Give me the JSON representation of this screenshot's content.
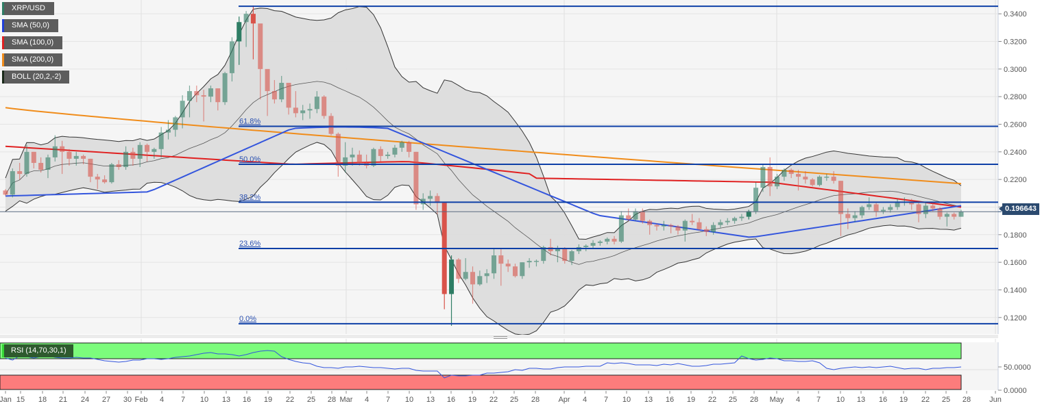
{
  "legend": [
    {
      "label": "XRP/USD",
      "color": "#2e7d64"
    },
    {
      "label": "SMA (50,0)",
      "color": "#1f3fd9"
    },
    {
      "label": "SMA (100,0)",
      "color": "#e02020"
    },
    {
      "label": "SMA (200,0)",
      "color": "#f08c1a"
    },
    {
      "label": "BOLL (20,2,-2)",
      "color": "#1a2a1a"
    }
  ],
  "rsi_label": "RSI (14,70,30,1)",
  "current_price": "0.196643",
  "colors": {
    "bull": "#2e7d64",
    "bear": "#d9534a",
    "sma50": "#3355dd",
    "sma100": "#e02020",
    "sma200": "#f08c1a",
    "fib": "#0d3fa6",
    "boll_fill": "#dcdcdc",
    "rsi_overbought": "#7cfc7c",
    "rsi_oversold": "#fc7c7c",
    "rsi_line": "#3355dd"
  },
  "chart_data": {
    "type": "candlestick",
    "title": "XRP/USD",
    "y_axis": {
      "min": 0.11,
      "max": 0.345,
      "ticks": [
        "0.3400",
        "0.3200",
        "0.3000",
        "0.2800",
        "0.2600",
        "0.2400",
        "0.2200",
        "0.2000",
        "0.1800",
        "0.1600",
        "0.1400",
        "0.1200"
      ]
    },
    "x_axis_labels": [
      "Jan",
      "15",
      "18",
      "21",
      "24",
      "27",
      "30",
      "Feb",
      "4",
      "7",
      "10",
      "13",
      "16",
      "19",
      "22",
      "25",
      "28",
      "Mar",
      "4",
      "7",
      "10",
      "13",
      "16",
      "19",
      "22",
      "25",
      "28",
      "Apr",
      "4",
      "7",
      "10",
      "13",
      "16",
      "19",
      "22",
      "25",
      "28",
      "May",
      "4",
      "7",
      "10",
      "13",
      "16",
      "19",
      "22",
      "25",
      "28",
      "Jun"
    ],
    "fibonacci": [
      {
        "label": "0.0%",
        "value": 0.1155
      },
      {
        "label": "23.6%",
        "value": 0.17
      },
      {
        "label": "38.2%",
        "value": 0.2035
      },
      {
        "label": "50.0%",
        "value": 0.231
      },
      {
        "label": "61.8%",
        "value": 0.2585
      },
      {
        "label": "",
        "value": 0.3455
      }
    ],
    "candles_approx": [
      [
        0.212,
        0.213,
        0.208,
        0.209
      ],
      [
        0.209,
        0.228,
        0.207,
        0.226
      ],
      [
        0.226,
        0.232,
        0.22,
        0.224
      ],
      [
        0.224,
        0.245,
        0.222,
        0.24
      ],
      [
        0.24,
        0.24,
        0.228,
        0.232
      ],
      [
        0.232,
        0.236,
        0.225,
        0.227
      ],
      [
        0.227,
        0.238,
        0.221,
        0.236
      ],
      [
        0.236,
        0.252,
        0.233,
        0.244
      ],
      [
        0.244,
        0.248,
        0.224,
        0.24
      ],
      [
        0.24,
        0.242,
        0.23,
        0.235
      ],
      [
        0.235,
        0.24,
        0.23,
        0.237
      ],
      [
        0.237,
        0.238,
        0.231,
        0.235
      ],
      [
        0.235,
        0.235,
        0.218,
        0.222
      ],
      [
        0.222,
        0.224,
        0.213,
        0.22
      ],
      [
        0.22,
        0.223,
        0.217,
        0.218
      ],
      [
        0.218,
        0.232,
        0.217,
        0.231
      ],
      [
        0.231,
        0.234,
        0.227,
        0.229
      ],
      [
        0.229,
        0.244,
        0.227,
        0.24
      ],
      [
        0.24,
        0.243,
        0.23,
        0.235
      ],
      [
        0.235,
        0.247,
        0.229,
        0.245
      ],
      [
        0.245,
        0.246,
        0.233,
        0.24
      ],
      [
        0.24,
        0.243,
        0.235,
        0.242
      ],
      [
        0.242,
        0.258,
        0.236,
        0.254
      ],
      [
        0.254,
        0.263,
        0.249,
        0.256
      ],
      [
        0.256,
        0.266,
        0.251,
        0.265
      ],
      [
        0.265,
        0.281,
        0.257,
        0.277
      ],
      [
        0.277,
        0.288,
        0.265,
        0.284
      ],
      [
        0.284,
        0.288,
        0.276,
        0.281
      ],
      [
        0.281,
        0.285,
        0.262,
        0.28
      ],
      [
        0.28,
        0.288,
        0.276,
        0.286
      ],
      [
        0.286,
        0.286,
        0.27,
        0.276
      ],
      [
        0.276,
        0.298,
        0.274,
        0.297
      ],
      [
        0.297,
        0.323,
        0.291,
        0.32
      ],
      [
        0.32,
        0.338,
        0.303,
        0.334
      ],
      [
        0.334,
        0.342,
        0.316,
        0.34
      ],
      [
        0.34,
        0.346,
        0.307,
        0.333
      ],
      [
        0.333,
        0.322,
        0.278,
        0.3
      ],
      [
        0.3,
        0.299,
        0.266,
        0.284
      ],
      [
        0.284,
        0.292,
        0.275,
        0.278
      ],
      [
        0.278,
        0.295,
        0.276,
        0.29
      ],
      [
        0.29,
        0.29,
        0.267,
        0.272
      ],
      [
        0.272,
        0.284,
        0.265,
        0.268
      ],
      [
        0.268,
        0.274,
        0.263,
        0.27
      ],
      [
        0.27,
        0.275,
        0.264,
        0.271
      ],
      [
        0.271,
        0.284,
        0.268,
        0.28
      ],
      [
        0.28,
        0.281,
        0.264,
        0.266
      ],
      [
        0.266,
        0.268,
        0.252,
        0.253
      ],
      [
        0.253,
        0.254,
        0.222,
        0.23
      ],
      [
        0.23,
        0.247,
        0.225,
        0.236
      ],
      [
        0.236,
        0.243,
        0.23,
        0.238
      ],
      [
        0.238,
        0.241,
        0.23,
        0.232
      ],
      [
        0.232,
        0.238,
        0.228,
        0.23
      ],
      [
        0.23,
        0.243,
        0.229,
        0.242
      ],
      [
        0.242,
        0.244,
        0.233,
        0.237
      ],
      [
        0.237,
        0.24,
        0.235,
        0.238
      ],
      [
        0.238,
        0.245,
        0.236,
        0.243
      ],
      [
        0.243,
        0.248,
        0.24,
        0.247
      ],
      [
        0.247,
        0.248,
        0.236,
        0.24
      ],
      [
        0.24,
        0.24,
        0.198,
        0.202
      ],
      [
        0.202,
        0.21,
        0.198,
        0.206
      ],
      [
        0.206,
        0.212,
        0.201,
        0.208
      ],
      [
        0.208,
        0.21,
        0.195,
        0.203
      ],
      [
        0.203,
        0.203,
        0.126,
        0.137
      ],
      [
        0.137,
        0.165,
        0.114,
        0.162
      ],
      [
        0.162,
        0.163,
        0.145,
        0.148
      ],
      [
        0.148,
        0.163,
        0.147,
        0.153
      ],
      [
        0.153,
        0.157,
        0.13,
        0.144
      ],
      [
        0.144,
        0.154,
        0.143,
        0.15
      ],
      [
        0.15,
        0.155,
        0.145,
        0.152
      ],
      [
        0.152,
        0.17,
        0.148,
        0.165
      ],
      [
        0.165,
        0.17,
        0.143,
        0.159
      ],
      [
        0.159,
        0.162,
        0.153,
        0.157
      ],
      [
        0.157,
        0.159,
        0.149,
        0.15
      ],
      [
        0.15,
        0.16,
        0.148,
        0.16
      ],
      [
        0.16,
        0.163,
        0.156,
        0.161
      ],
      [
        0.161,
        0.162,
        0.157,
        0.161
      ],
      [
        0.161,
        0.172,
        0.159,
        0.171
      ],
      [
        0.171,
        0.177,
        0.165,
        0.168
      ],
      [
        0.168,
        0.172,
        0.16,
        0.17
      ],
      [
        0.17,
        0.171,
        0.159,
        0.161
      ],
      [
        0.161,
        0.169,
        0.158,
        0.168
      ],
      [
        0.168,
        0.173,
        0.166,
        0.171
      ],
      [
        0.171,
        0.173,
        0.168,
        0.172
      ],
      [
        0.172,
        0.176,
        0.17,
        0.174
      ],
      [
        0.174,
        0.176,
        0.172,
        0.175
      ],
      [
        0.175,
        0.178,
        0.173,
        0.177
      ],
      [
        0.177,
        0.179,
        0.173,
        0.175
      ],
      [
        0.175,
        0.197,
        0.174,
        0.194
      ],
      [
        0.194,
        0.199,
        0.19,
        0.191
      ],
      [
        0.191,
        0.199,
        0.19,
        0.197
      ],
      [
        0.197,
        0.199,
        0.188,
        0.19
      ],
      [
        0.19,
        0.191,
        0.18,
        0.187
      ],
      [
        0.187,
        0.188,
        0.183,
        0.186
      ],
      [
        0.186,
        0.19,
        0.183,
        0.187
      ],
      [
        0.187,
        0.188,
        0.181,
        0.186
      ],
      [
        0.186,
        0.187,
        0.18,
        0.183
      ],
      [
        0.183,
        0.191,
        0.175,
        0.19
      ],
      [
        0.19,
        0.195,
        0.187,
        0.189
      ],
      [
        0.189,
        0.192,
        0.183,
        0.184
      ],
      [
        0.184,
        0.186,
        0.179,
        0.182
      ],
      [
        0.182,
        0.189,
        0.18,
        0.187
      ],
      [
        0.187,
        0.191,
        0.185,
        0.189
      ],
      [
        0.189,
        0.192,
        0.187,
        0.19
      ],
      [
        0.19,
        0.193,
        0.188,
        0.192
      ],
      [
        0.192,
        0.195,
        0.19,
        0.193
      ],
      [
        0.193,
        0.198,
        0.191,
        0.197
      ],
      [
        0.197,
        0.218,
        0.195,
        0.214
      ],
      [
        0.214,
        0.231,
        0.211,
        0.229
      ],
      [
        0.229,
        0.236,
        0.208,
        0.215
      ],
      [
        0.215,
        0.224,
        0.213,
        0.222
      ],
      [
        0.222,
        0.228,
        0.219,
        0.227
      ],
      [
        0.227,
        0.228,
        0.221,
        0.224
      ],
      [
        0.224,
        0.227,
        0.212,
        0.222
      ],
      [
        0.222,
        0.226,
        0.217,
        0.22
      ],
      [
        0.22,
        0.221,
        0.215,
        0.216
      ],
      [
        0.216,
        0.223,
        0.215,
        0.222
      ],
      [
        0.222,
        0.224,
        0.219,
        0.222
      ],
      [
        0.222,
        0.226,
        0.217,
        0.219
      ],
      [
        0.219,
        0.219,
        0.179,
        0.195
      ],
      [
        0.195,
        0.199,
        0.184,
        0.192
      ],
      [
        0.192,
        0.197,
        0.189,
        0.194
      ],
      [
        0.194,
        0.201,
        0.192,
        0.2
      ],
      [
        0.2,
        0.207,
        0.198,
        0.202
      ],
      [
        0.202,
        0.203,
        0.193,
        0.197
      ],
      [
        0.197,
        0.2,
        0.195,
        0.198
      ],
      [
        0.198,
        0.202,
        0.196,
        0.2
      ],
      [
        0.2,
        0.206,
        0.198,
        0.204
      ],
      [
        0.204,
        0.207,
        0.201,
        0.204
      ],
      [
        0.204,
        0.206,
        0.198,
        0.202
      ],
      [
        0.202,
        0.203,
        0.189,
        0.195
      ],
      [
        0.195,
        0.203,
        0.192,
        0.201
      ],
      [
        0.201,
        0.203,
        0.197,
        0.199
      ],
      [
        0.199,
        0.2,
        0.191,
        0.193
      ],
      [
        0.193,
        0.196,
        0.186,
        0.195
      ],
      [
        0.195,
        0.196,
        0.191,
        0.193
      ],
      [
        0.193,
        0.198,
        0.193,
        0.1966
      ]
    ],
    "rsi": {
      "levels": [
        70,
        30
      ],
      "ticks": [
        "50.0000",
        "0.0000"
      ],
      "last_value": 47
    }
  }
}
